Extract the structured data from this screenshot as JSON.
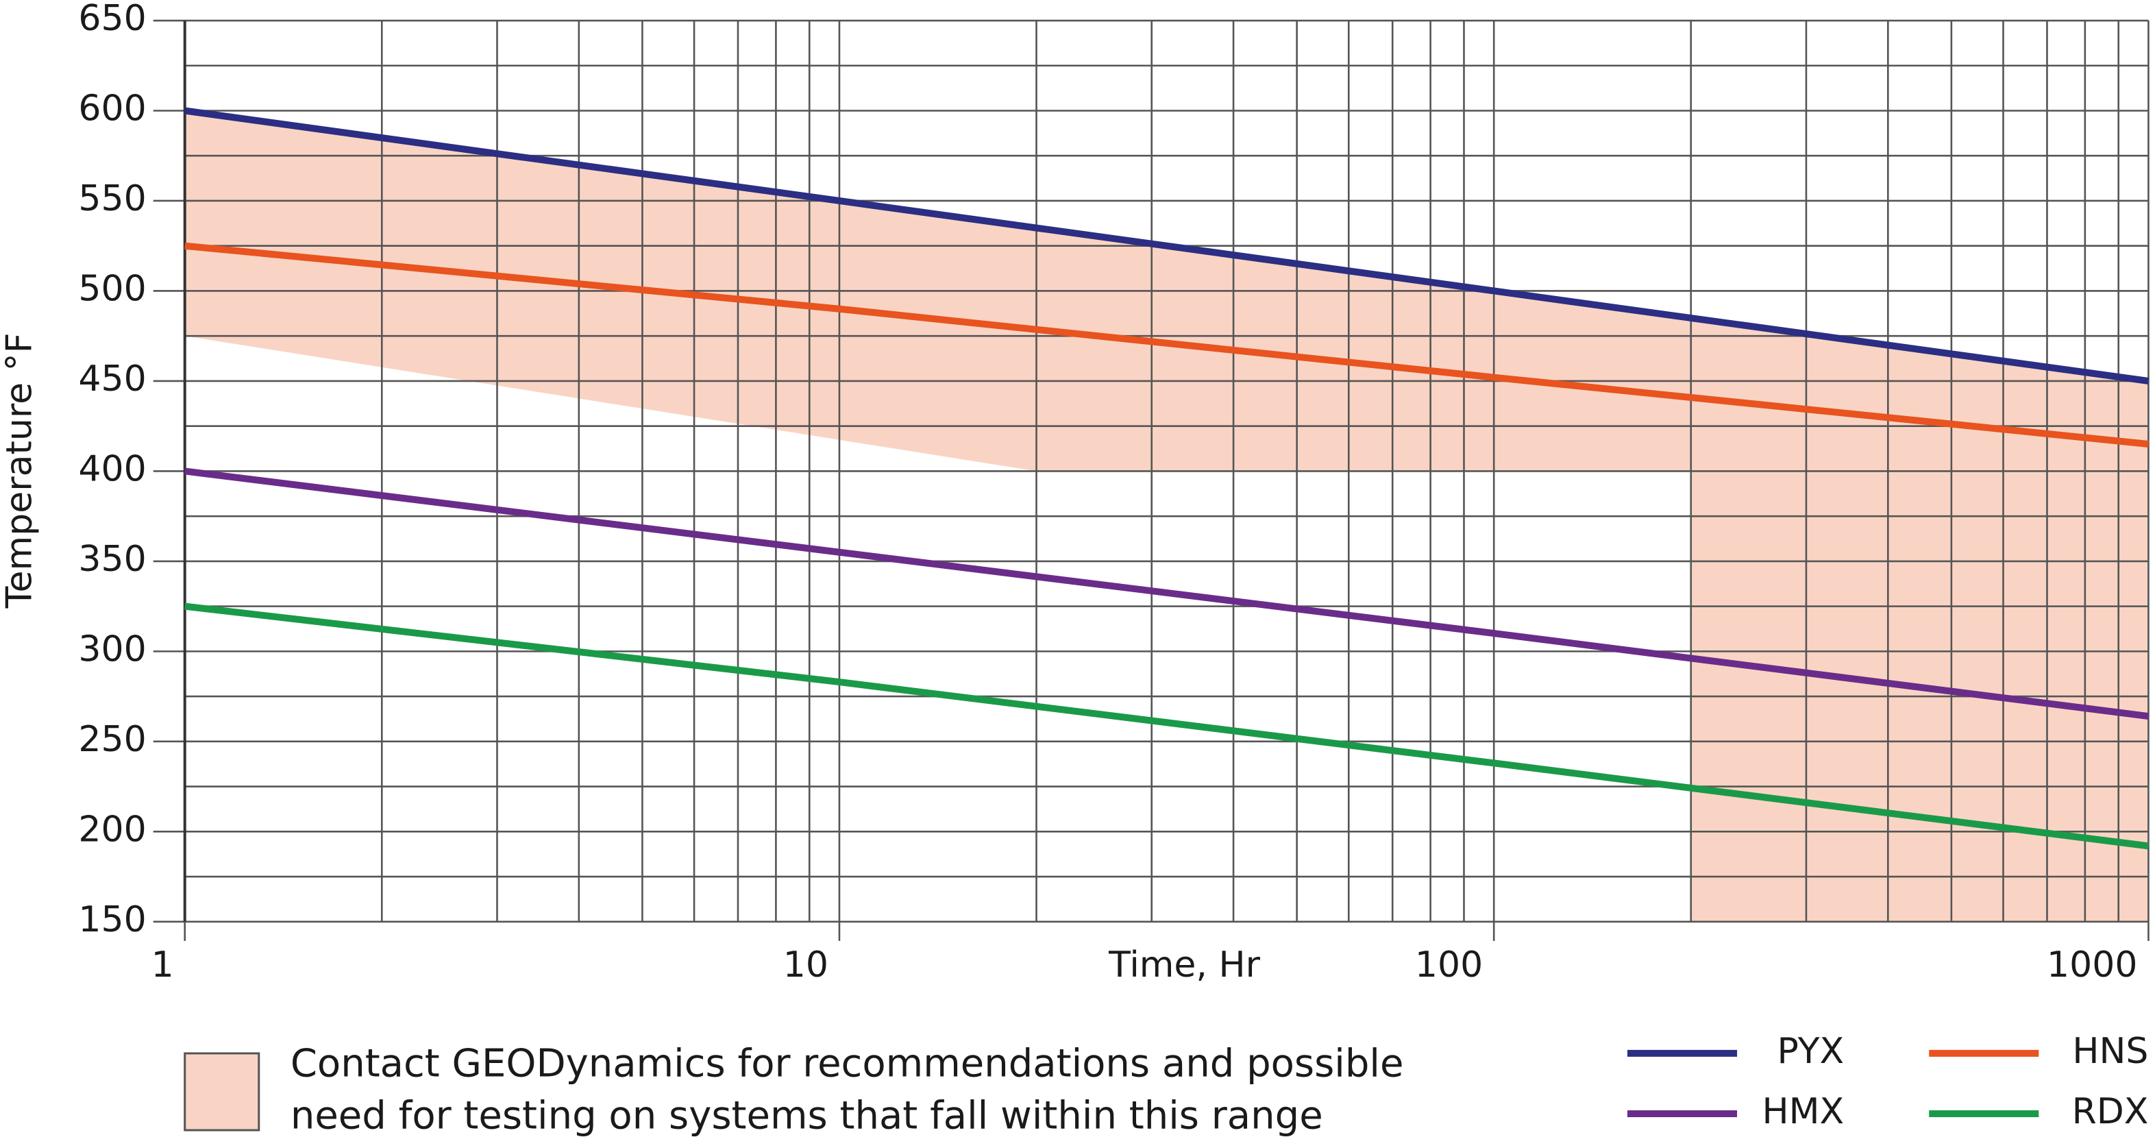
{
  "chart_data": {
    "type": "line",
    "xlabel": "Time, Hr",
    "ylabel": "Temperature °F",
    "x": [
      1,
      10,
      100,
      1000
    ],
    "xlim": [
      1,
      1000
    ],
    "xticks": [
      1,
      10,
      100,
      1000
    ],
    "xscale": "log",
    "ylim": [
      150,
      650
    ],
    "yticks": [
      150,
      200,
      250,
      300,
      350,
      400,
      450,
      500,
      550,
      600,
      650
    ],
    "grid": true,
    "series": [
      {
        "name": "PYX",
        "color": "#2b2e83",
        "values": [
          600,
          550,
          500,
          450
        ]
      },
      {
        "name": "HNS",
        "color": "#e8531f",
        "values": [
          525,
          490,
          452,
          415
        ]
      },
      {
        "name": "HMX",
        "color": "#6a2c8a",
        "values": [
          400,
          355,
          310,
          264
        ]
      },
      {
        "name": "RDX",
        "color": "#1a9a48",
        "values": [
          325,
          283,
          238,
          192
        ]
      }
    ],
    "shaded_region": {
      "color": "#f9d4c4",
      "x": [
        1,
        1,
        20,
        200,
        200,
        1000,
        1000
      ],
      "y": [
        600,
        475,
        400,
        400,
        150,
        150,
        450
      ],
      "note": [
        "Contact GEODynamics for recommendations and possible",
        "need for testing on systems that fall within this range"
      ]
    }
  }
}
